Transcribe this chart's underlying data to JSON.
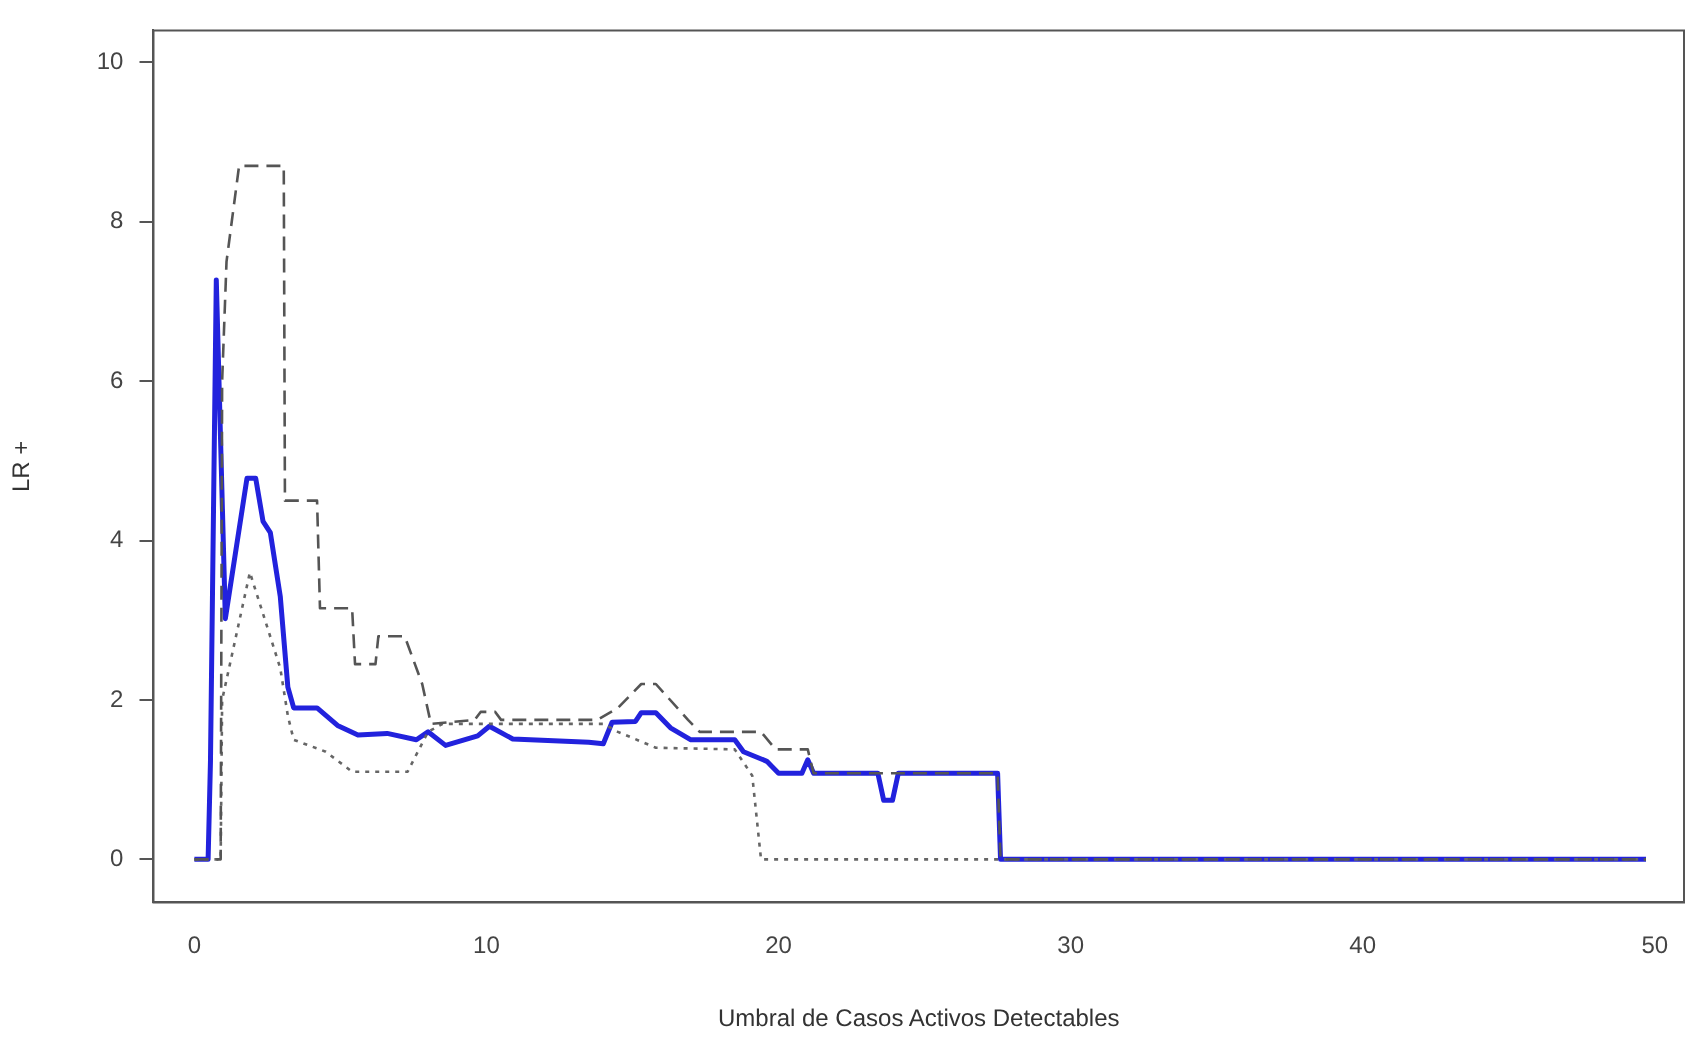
{
  "chart_data": {
    "type": "line",
    "xlabel": "Umbral de Casos Activos Detectables",
    "ylabel": "LR +",
    "xlim": [
      -1.4,
      51
    ],
    "ylim": [
      -0.54,
      10.4
    ],
    "xticks": [
      0,
      10,
      20,
      30,
      40,
      50
    ],
    "yticks": [
      0,
      2,
      4,
      6,
      8,
      10
    ],
    "grid": false,
    "legend": false,
    "marker": "none",
    "series": [
      {
        "color": "#555555",
        "line_style": "dashed",
        "x": [
          0,
          0.9,
          0.95,
          1.1,
          1.53,
          3.06,
          3.1,
          4.2,
          4.3,
          5.4,
          5.5,
          6.2,
          6.3,
          7.2,
          7.8,
          8.1,
          9.6,
          9.8,
          10.3,
          10.5,
          13.8,
          14.5,
          15.3,
          15.8,
          16.9,
          17.3,
          19.4,
          19.9,
          21,
          21.2,
          27.5,
          27.6,
          49.7
        ],
        "values": [
          0,
          0,
          6,
          7.5,
          8.7,
          8.7,
          4.5,
          4.5,
          3.15,
          3.15,
          2.45,
          2.45,
          2.8,
          2.8,
          2.2,
          1.7,
          1.75,
          1.85,
          1.85,
          1.75,
          1.75,
          1.9,
          2.2,
          2.2,
          1.75,
          1.6,
          1.6,
          1.38,
          1.38,
          1.08,
          1.08,
          0,
          0
        ]
      },
      {
        "color": "#666666",
        "line_style": "dotted",
        "x": [
          0,
          0.9,
          0.95,
          1.9,
          2.94,
          3.2,
          3.4,
          4.5,
          5.4,
          7.3,
          8,
          8.5,
          14,
          14.5,
          15.8,
          18.5,
          19.1,
          19.4,
          49.7
        ],
        "values": [
          0,
          0,
          2,
          3.6,
          2.4,
          1.8,
          1.5,
          1.35,
          1.1,
          1.1,
          1.6,
          1.7,
          1.7,
          1.6,
          1.4,
          1.38,
          1.05,
          0,
          0
        ]
      },
      {
        "color": "#2222dd",
        "line_style": "solid",
        "x": [
          0,
          0.47,
          0.55,
          0.75,
          1.06,
          1.8,
          2.1,
          2.35,
          2.6,
          2.94,
          3.2,
          3.4,
          4.2,
          4.9,
          5.6,
          6.6,
          7.6,
          8,
          8.6,
          9.7,
          10.1,
          10.9,
          13.5,
          14,
          14.3,
          15.1,
          15.3,
          15.8,
          16.3,
          17,
          18.5,
          18.8,
          19.6,
          20,
          20.8,
          21,
          21.2,
          23.4,
          23.6,
          23.9,
          24.1,
          27.5,
          27.6,
          49.7
        ],
        "values": [
          0,
          0,
          1.22,
          7.27,
          3.02,
          4.78,
          4.78,
          4.24,
          4.1,
          3.3,
          2.16,
          1.9,
          1.9,
          1.68,
          1.56,
          1.58,
          1.5,
          1.6,
          1.43,
          1.55,
          1.67,
          1.51,
          1.47,
          1.45,
          1.72,
          1.73,
          1.84,
          1.84,
          1.65,
          1.5,
          1.5,
          1.35,
          1.23,
          1.08,
          1.08,
          1.25,
          1.08,
          1.08,
          0.74,
          0.74,
          1.08,
          1.08,
          0,
          0
        ]
      }
    ]
  }
}
